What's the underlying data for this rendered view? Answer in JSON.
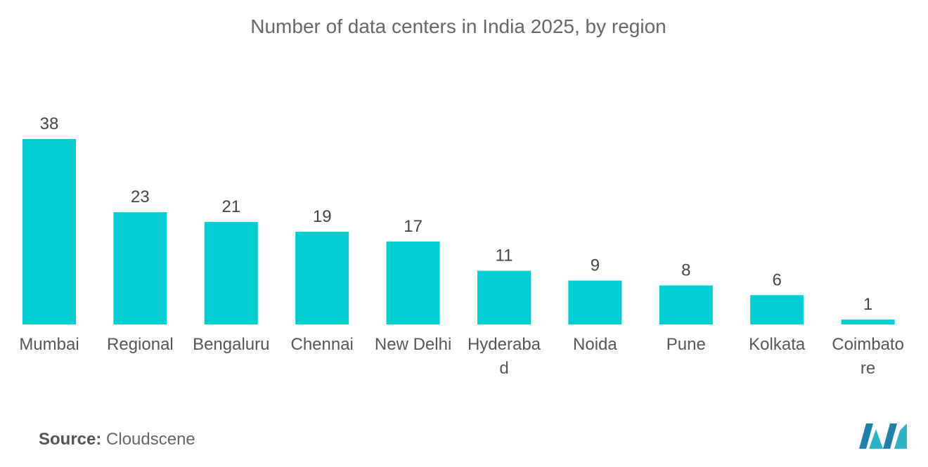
{
  "chart_data": {
    "type": "bar",
    "title": "Number of data centers in India 2025, by region",
    "categories": [
      "Mumbai",
      "Regional",
      "Bengaluru",
      "Chennai",
      "New Delhi",
      "Hyderabad",
      "Noida",
      "Pune",
      "Kolkata",
      "Coimbatore"
    ],
    "category_display_lines": [
      [
        "Mumbai"
      ],
      [
        "Regional"
      ],
      [
        "Bengaluru"
      ],
      [
        "Chennai"
      ],
      [
        "New Delhi"
      ],
      [
        "Hyderaba",
        "d"
      ],
      [
        "Noida"
      ],
      [
        "Pune"
      ],
      [
        "Kolkata"
      ],
      [
        "Coimbato",
        "re"
      ]
    ],
    "values": [
      38,
      23,
      21,
      19,
      17,
      11,
      9,
      8,
      6,
      1
    ],
    "xlabel": "",
    "ylabel": "",
    "ylim": [
      0,
      38
    ],
    "grid": false,
    "legend": "none",
    "bar_color": "#00CED1"
  },
  "source": {
    "label": "Source:",
    "text": "Cloudscene"
  },
  "logo": {
    "icon": "mordor-intelligence-logo-icon",
    "colors": [
      "#1F7FA8",
      "#2DB3C7"
    ]
  }
}
